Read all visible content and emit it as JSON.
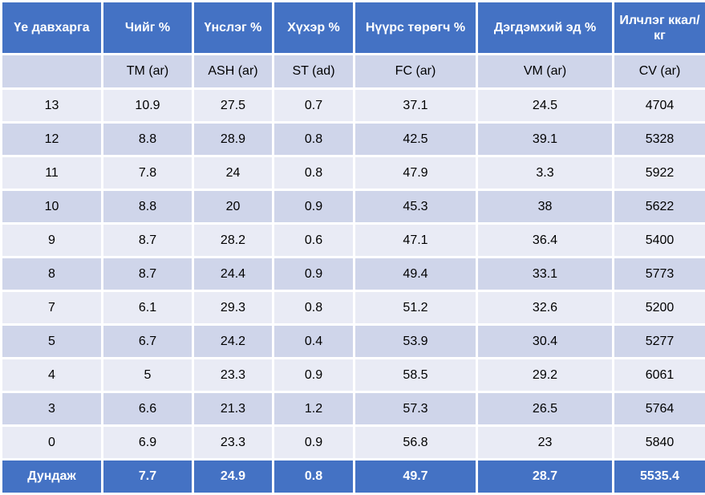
{
  "table": {
    "headers": [
      "Үе давхарга",
      "Чийг %",
      "Үнслэг %",
      "Хүхэр %",
      "Нүүрс төрөгч %",
      "Дэгдэмхий эд %",
      "Илчлэг ккал/кг"
    ],
    "units": [
      "",
      "TM (ar)",
      "ASH (ar)",
      "ST (ad)",
      "FC (ar)",
      "VM (ar)",
      "CV (ar)"
    ],
    "rows": [
      [
        "13",
        "10.9",
        "27.5",
        "0.7",
        "37.1",
        "24.5",
        "4704"
      ],
      [
        "12",
        "8.8",
        "28.9",
        "0.8",
        "42.5",
        "39.1",
        "5328"
      ],
      [
        "11",
        "7.8",
        "24",
        "0.8",
        "47.9",
        "3.3",
        "5922"
      ],
      [
        "10",
        "8.8",
        "20",
        "0.9",
        "45.3",
        "38",
        "5622"
      ],
      [
        "9",
        "8.7",
        "28.2",
        "0.6",
        "47.1",
        "36.4",
        "5400"
      ],
      [
        "8",
        "8.7",
        "24.4",
        "0.9",
        "49.4",
        "33.1",
        "5773"
      ],
      [
        "7",
        "6.1",
        "29.3",
        "0.8",
        "51.2",
        "32.6",
        "5200"
      ],
      [
        "5",
        "6.7",
        "24.2",
        "0.4",
        "53.9",
        "30.4",
        "5277"
      ],
      [
        "4",
        "5",
        "23.3",
        "0.9",
        "58.5",
        "29.2",
        "6061"
      ],
      [
        "3",
        "6.6",
        "21.3",
        "1.2",
        "57.3",
        "26.5",
        "5764"
      ],
      [
        "0",
        "6.9",
        "23.3",
        "0.9",
        "56.8",
        "23",
        "5840"
      ]
    ],
    "average": [
      "Дундаж",
      "7.7",
      "24.9",
      "0.8",
      "49.7",
      "28.7",
      "5535.4"
    ]
  },
  "colors": {
    "header_bg": "#4472C4",
    "header_text": "#FFFFFF",
    "band_light": "#E9EBF5",
    "band_dark": "#CFD5EA"
  }
}
